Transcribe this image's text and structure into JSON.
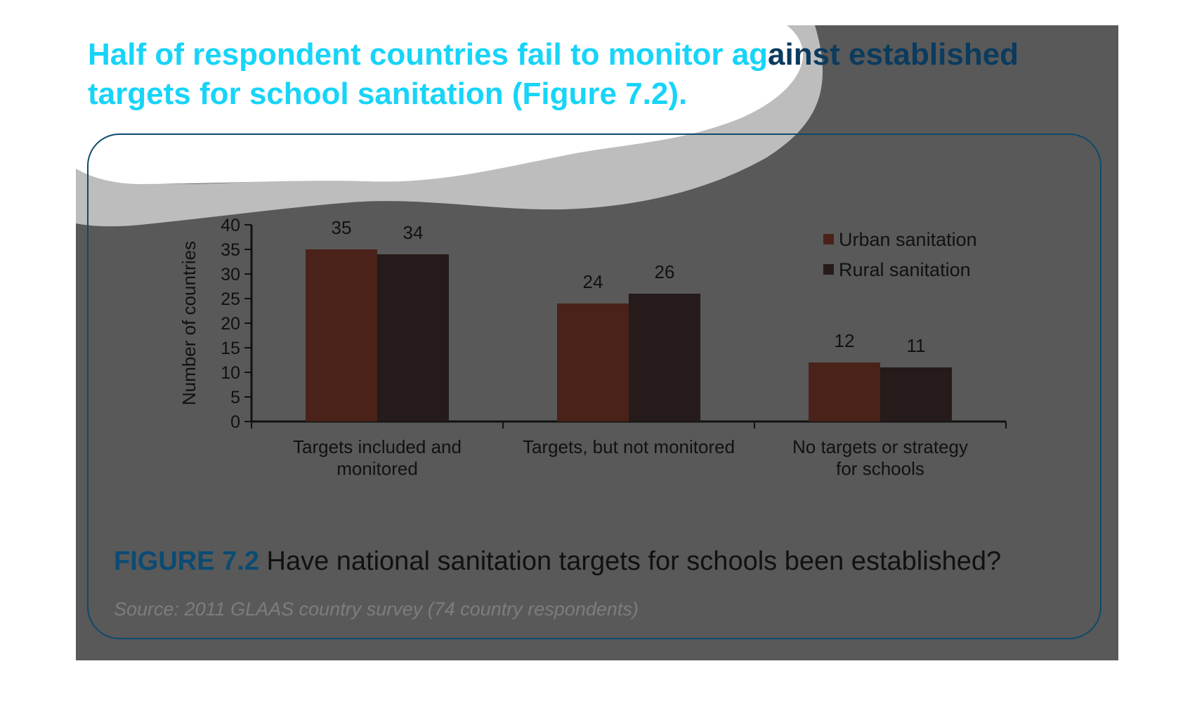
{
  "headline": {
    "part1": "Half of respondent countries fail to monitor ag",
    "part2": "ainst established",
    "line2": "targets for school sanitation (Figure 7.2)."
  },
  "caption": {
    "figure_number": "FIGURE 7.2",
    "text": "Have national sanitation targets for schools been established?"
  },
  "source": "Source: 2011 GLAAS country survey (74 country respondents)",
  "colors": {
    "urban": "#4a2219",
    "rural": "#241b1a",
    "headline": "#17d4f8",
    "background": "#595959"
  },
  "chart_data": {
    "type": "bar",
    "categories": [
      [
        "Targets included and",
        "monitored"
      ],
      [
        "Targets, but not monitored"
      ],
      [
        "No targets or strategy",
        "for schools"
      ]
    ],
    "series": [
      {
        "name": "Urban sanitation",
        "values": [
          35,
          24,
          12
        ]
      },
      {
        "name": "Rural sanitation",
        "values": [
          34,
          26,
          11
        ]
      }
    ],
    "ylabel": "Number of countries",
    "ylim": [
      0,
      40
    ],
    "yticks": [
      0,
      5,
      10,
      15,
      20,
      25,
      30,
      35,
      40
    ],
    "legend_position": "top-right",
    "grid": false
  }
}
